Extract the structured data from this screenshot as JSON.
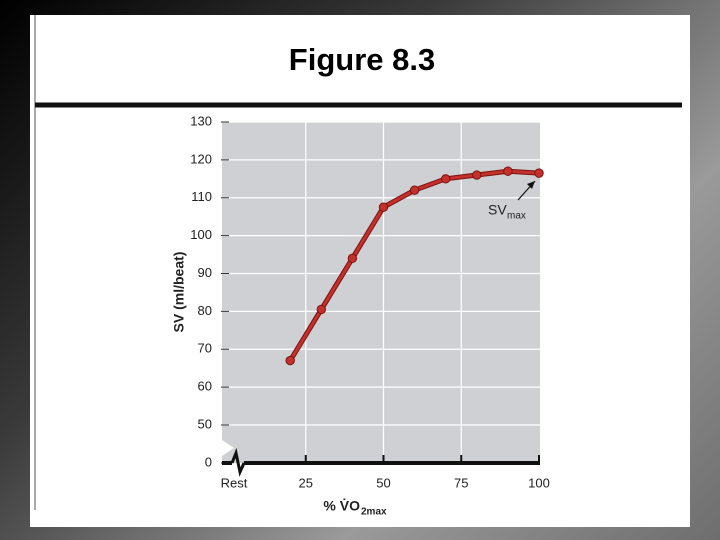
{
  "chart_data": {
    "type": "line",
    "title": "Figure 8.3",
    "x_label": {
      "main": "% V̇O",
      "subscript": "2max"
    },
    "y_label": "SV (ml/beat)",
    "annotation": {
      "main": "SV",
      "subscript": "max"
    },
    "x": [
      20,
      30,
      40,
      50,
      60,
      70,
      80,
      90,
      100
    ],
    "series": [
      {
        "color": "#c4302b",
        "values": [
          67,
          80.5,
          94,
          107.5,
          112,
          115,
          116,
          117,
          116.5
        ]
      }
    ],
    "xlim": [
      0,
      100
    ],
    "xticks": [
      {
        "value": 0,
        "label": "Rest"
      },
      25,
      50,
      75,
      100
    ],
    "ylim": [
      0,
      130
    ],
    "yticks": [
      0,
      50,
      60,
      70,
      80,
      90,
      100,
      110,
      120,
      130
    ],
    "y_axis_break": [
      0,
      50
    ],
    "grid": true
  }
}
